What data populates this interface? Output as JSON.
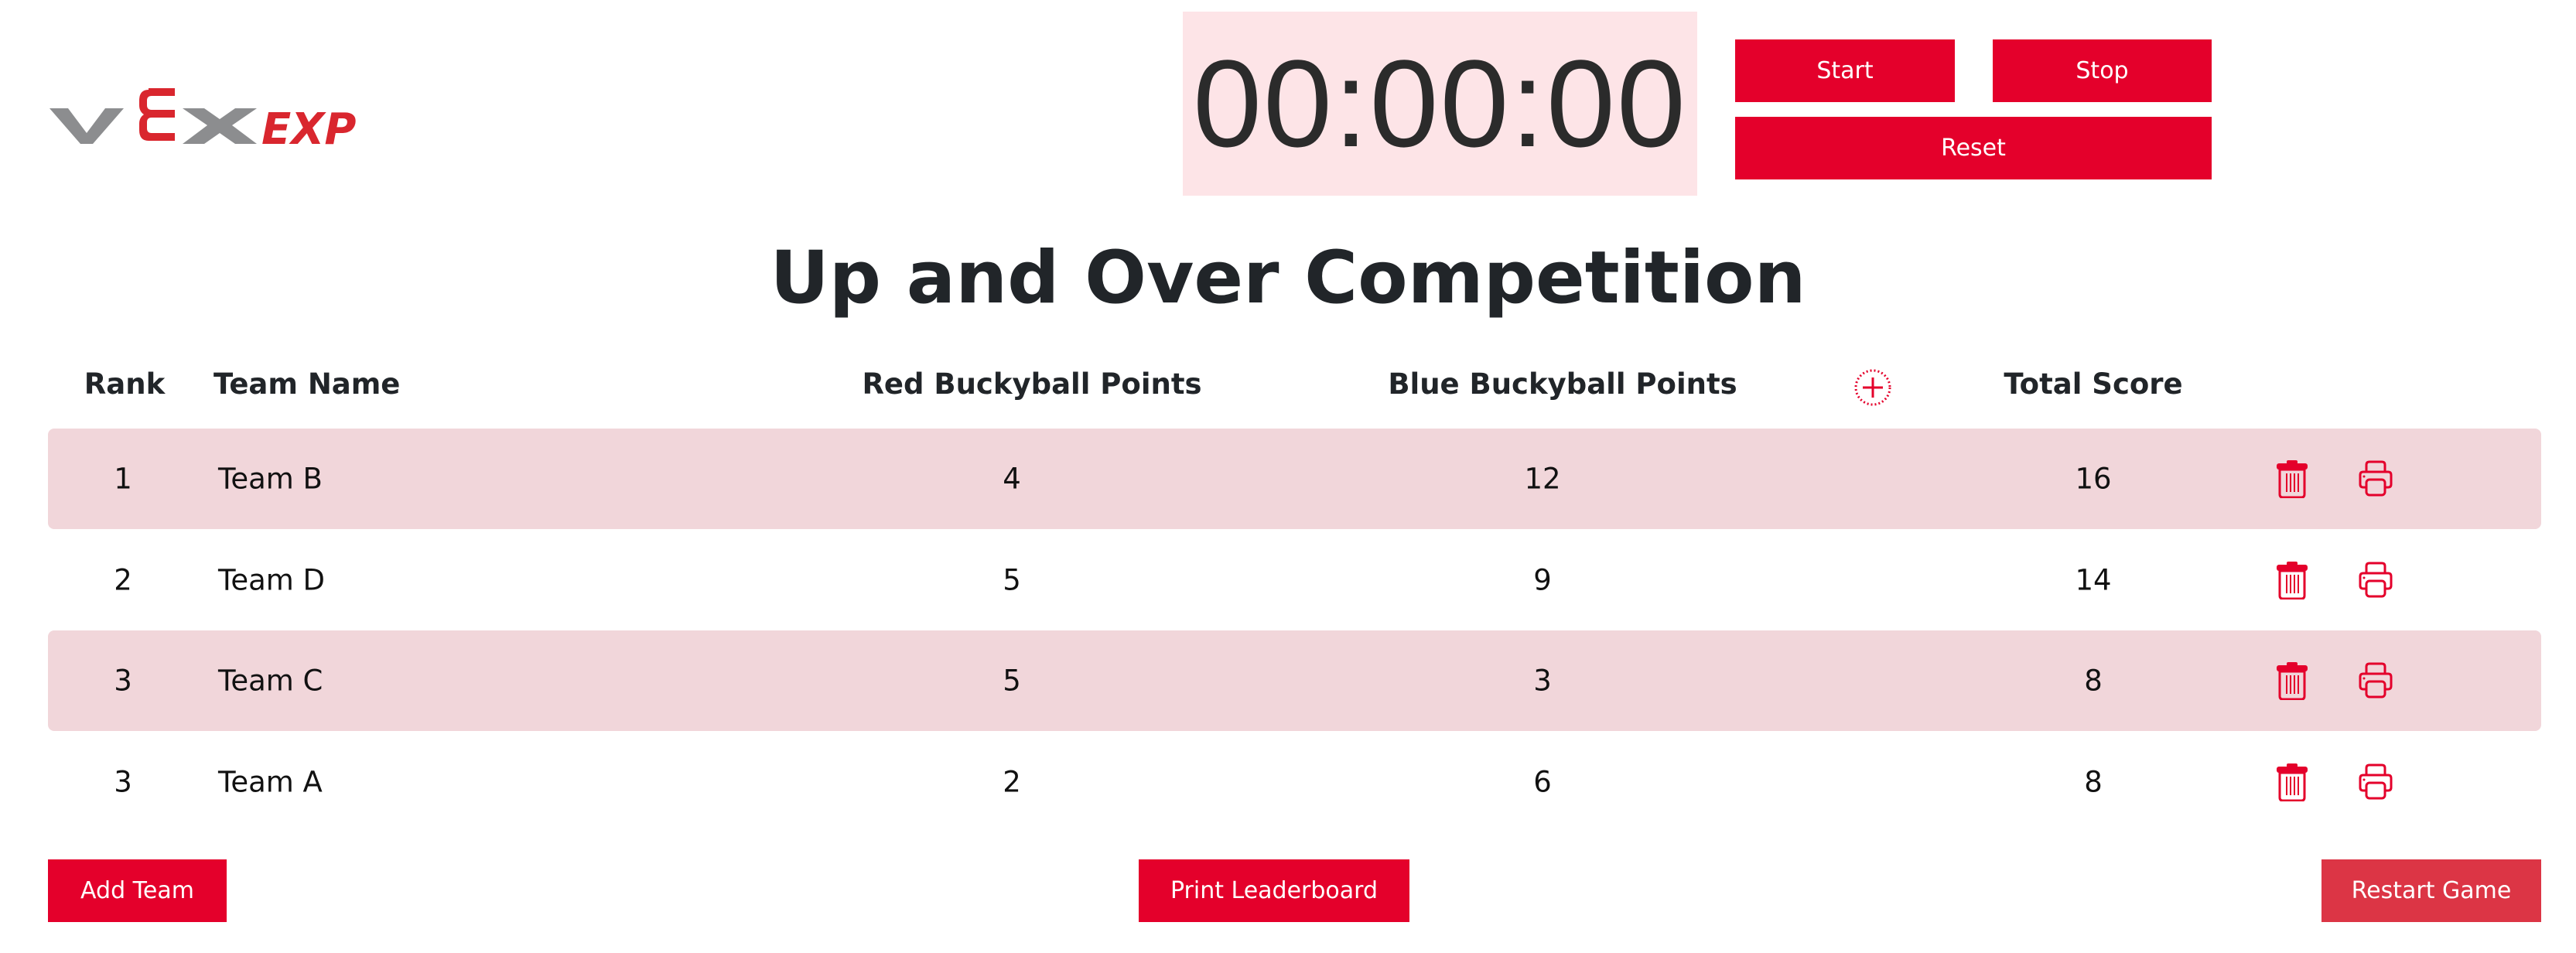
{
  "logo": {
    "text": "VEX EXP"
  },
  "timer": {
    "display": "00:00:00",
    "start_label": "Start",
    "stop_label": "Stop",
    "reset_label": "Reset"
  },
  "title": "Up and Over Competition",
  "table": {
    "headers": {
      "rank": "Rank",
      "team": "Team Name",
      "red": "Red Buckyball Points",
      "blue": "Blue Buckyball Points",
      "total": "Total Score"
    },
    "rows": [
      {
        "rank": "1",
        "team": "Team B",
        "red": "4",
        "blue": "12",
        "total": "16"
      },
      {
        "rank": "2",
        "team": "Team D",
        "red": "5",
        "blue": "9",
        "total": "14"
      },
      {
        "rank": "3",
        "team": "Team C",
        "red": "5",
        "blue": "3",
        "total": "8"
      },
      {
        "rank": "3",
        "team": "Team A",
        "red": "2",
        "blue": "6",
        "total": "8"
      }
    ]
  },
  "footer": {
    "add_team": "Add Team",
    "print_leaderboard": "Print Leaderboard",
    "restart_game": "Restart Game"
  },
  "colors": {
    "accent": "#e4002b",
    "row_shade": "#f1d6da",
    "timer_bg": "#fde4e7",
    "restart": "#dc3545"
  }
}
